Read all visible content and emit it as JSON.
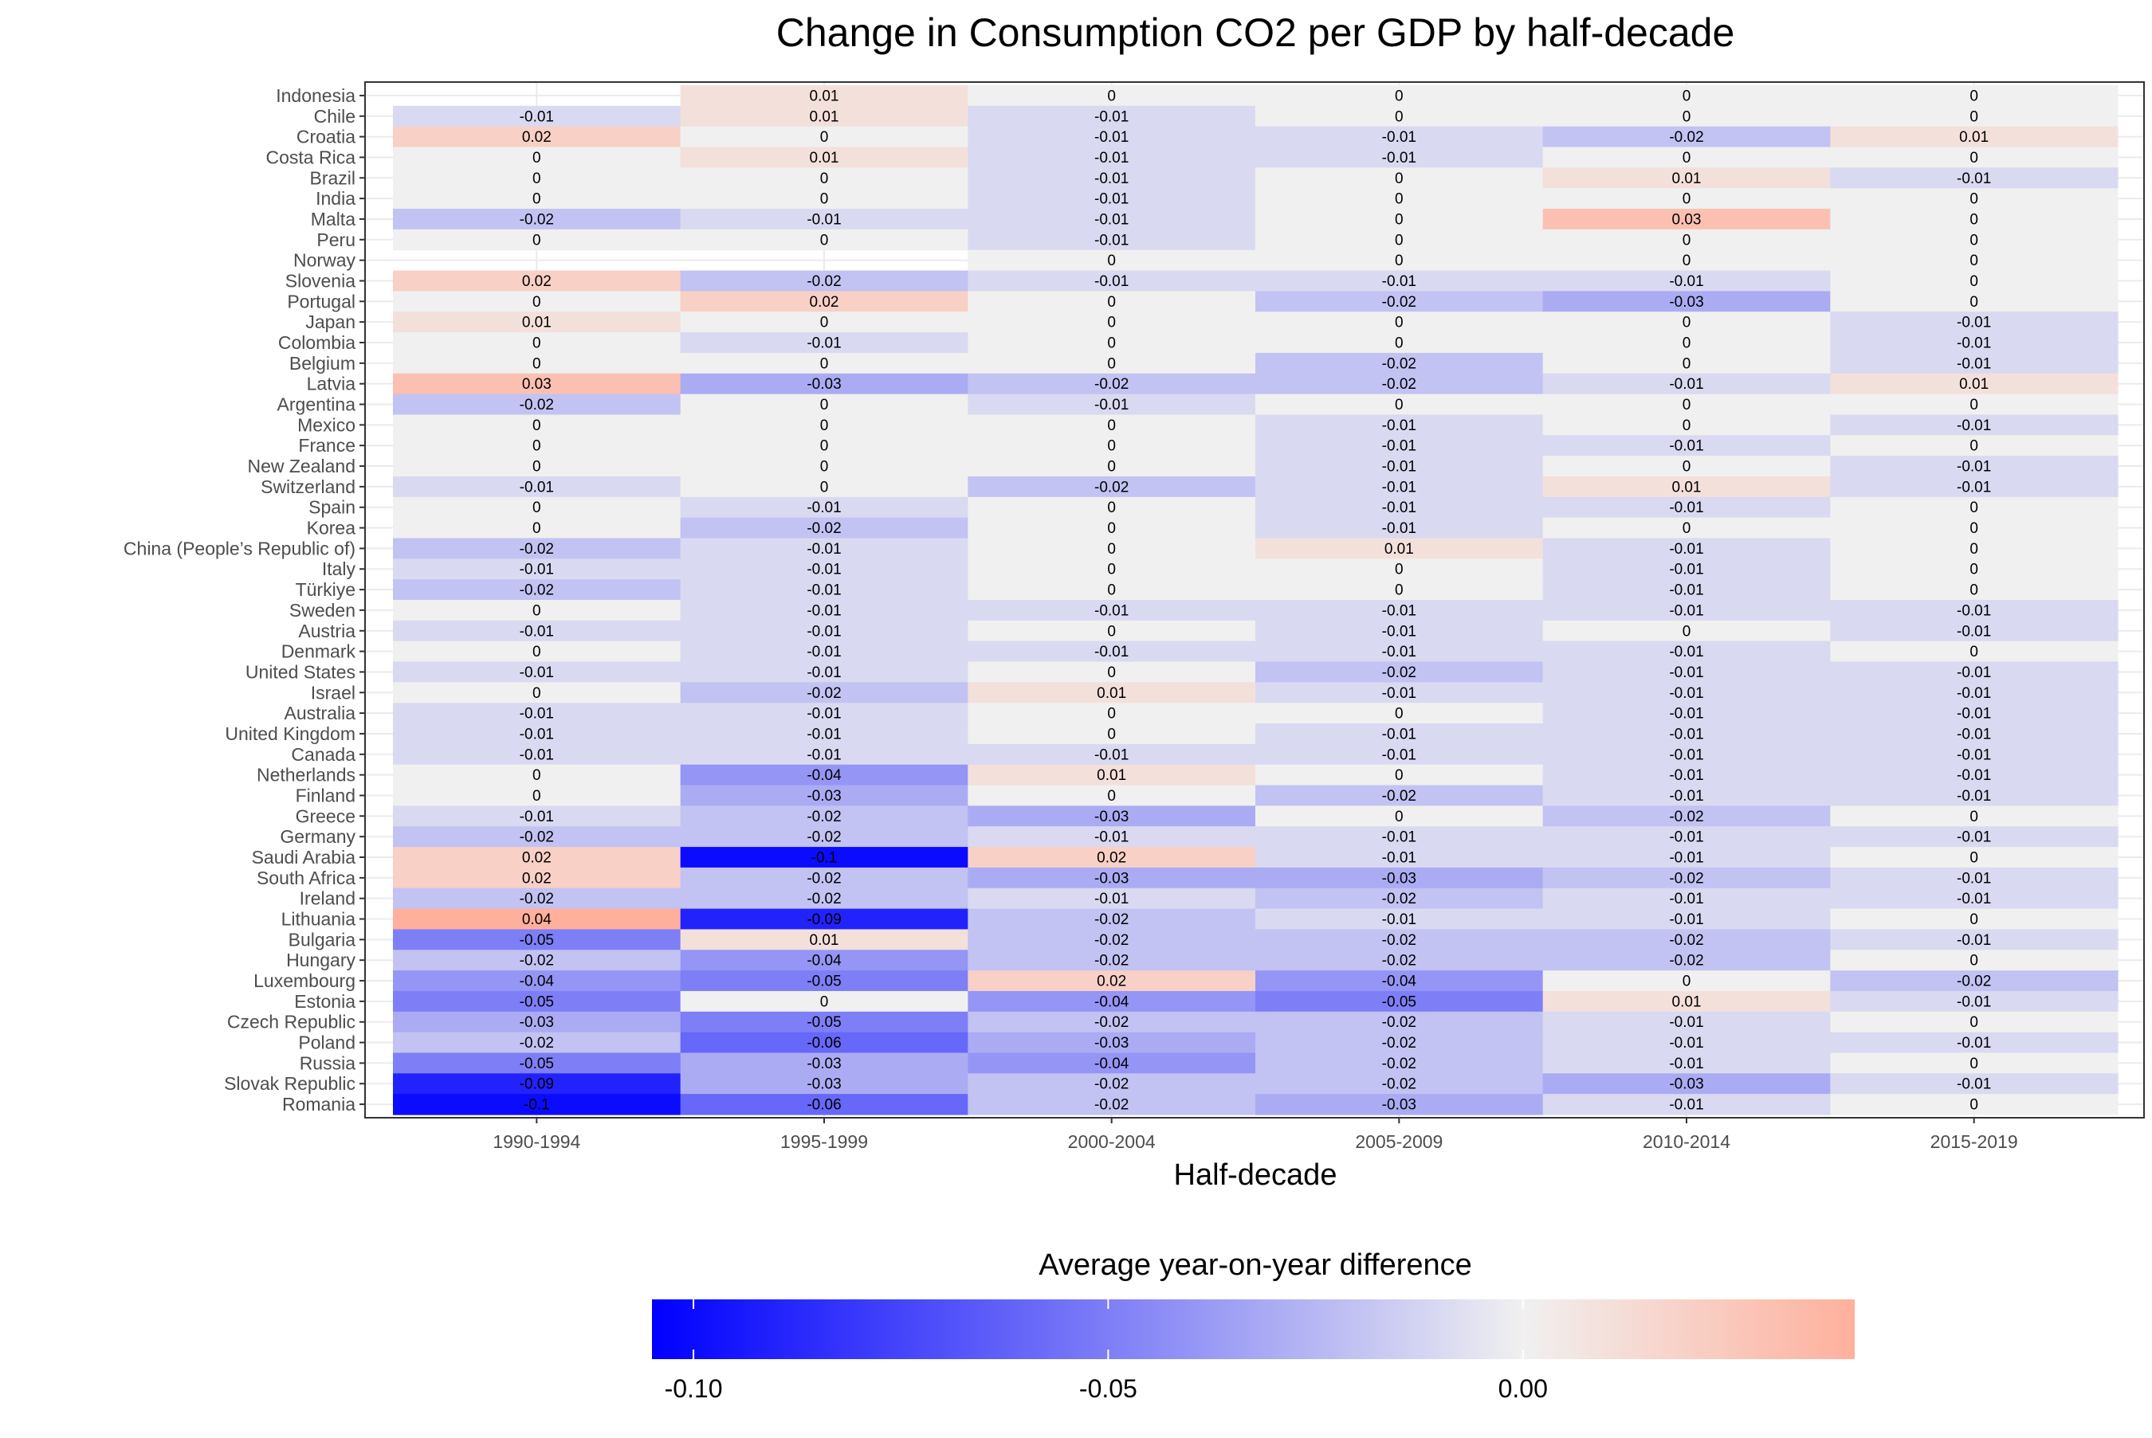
{
  "chart_data": {
    "type": "heatmap",
    "title": "Change in Consumption CO2 per GDP by half-decade",
    "xlabel": "Half-decade",
    "ylabel": "",
    "x": [
      "1990-1994",
      "1995-1999",
      "2000-2004",
      "2005-2009",
      "2010-2014",
      "2015-2019"
    ],
    "y": [
      "Indonesia",
      "Chile",
      "Croatia",
      "Costa Rica",
      "Brazil",
      "India",
      "Malta",
      "Peru",
      "Norway",
      "Slovenia",
      "Portugal",
      "Japan",
      "Colombia",
      "Belgium",
      "Latvia",
      "Argentina",
      "Mexico",
      "France",
      "New Zealand",
      "Switzerland",
      "Spain",
      "Korea",
      "China (People’s Republic of)",
      "Italy",
      "Türkiye",
      "Sweden",
      "Austria",
      "Denmark",
      "United States",
      "Israel",
      "Australia",
      "United Kingdom",
      "Canada",
      "Netherlands",
      "Finland",
      "Greece",
      "Germany",
      "Saudi Arabia",
      "South Africa",
      "Ireland",
      "Lithuania",
      "Bulgaria",
      "Hungary",
      "Luxembourg",
      "Estonia",
      "Czech Republic",
      "Poland",
      "Russia",
      "Slovak Republic",
      "Romania"
    ],
    "values": [
      [
        null,
        0.01,
        0,
        0,
        0,
        0
      ],
      [
        -0.01,
        0.01,
        -0.01,
        0,
        0,
        0
      ],
      [
        0.02,
        0,
        -0.01,
        -0.01,
        -0.02,
        0.01
      ],
      [
        0,
        0.01,
        -0.01,
        -0.01,
        0,
        0
      ],
      [
        0,
        0,
        -0.01,
        0,
        0.01,
        -0.01
      ],
      [
        0,
        0,
        -0.01,
        0,
        0,
        0
      ],
      [
        -0.02,
        -0.01,
        -0.01,
        0,
        0.03,
        0
      ],
      [
        0,
        0,
        -0.01,
        0,
        0,
        0
      ],
      [
        null,
        null,
        0,
        0,
        0,
        0
      ],
      [
        0.02,
        -0.02,
        -0.01,
        -0.01,
        -0.01,
        0
      ],
      [
        0,
        0.02,
        0,
        -0.02,
        -0.03,
        0
      ],
      [
        0.01,
        0,
        0,
        0,
        0,
        -0.01
      ],
      [
        0,
        -0.01,
        0,
        0,
        0,
        -0.01
      ],
      [
        0,
        0,
        0,
        -0.02,
        0,
        -0.01
      ],
      [
        0.03,
        -0.03,
        -0.02,
        -0.02,
        -0.01,
        0.01
      ],
      [
        -0.02,
        0,
        -0.01,
        0,
        0,
        0
      ],
      [
        0,
        0,
        0,
        -0.01,
        0,
        -0.01
      ],
      [
        0,
        0,
        0,
        -0.01,
        -0.01,
        0
      ],
      [
        0,
        0,
        0,
        -0.01,
        0,
        -0.01
      ],
      [
        -0.01,
        0,
        -0.02,
        -0.01,
        0.01,
        -0.01
      ],
      [
        0,
        -0.01,
        0,
        -0.01,
        -0.01,
        0
      ],
      [
        0,
        -0.02,
        0,
        -0.01,
        0,
        0
      ],
      [
        -0.02,
        -0.01,
        0,
        0.01,
        -0.01,
        0
      ],
      [
        -0.01,
        -0.01,
        0,
        0,
        -0.01,
        0
      ],
      [
        -0.02,
        -0.01,
        0,
        0,
        -0.01,
        0
      ],
      [
        0,
        -0.01,
        -0.01,
        -0.01,
        -0.01,
        -0.01
      ],
      [
        -0.01,
        -0.01,
        0,
        -0.01,
        0,
        -0.01
      ],
      [
        0,
        -0.01,
        -0.01,
        -0.01,
        -0.01,
        0
      ],
      [
        -0.01,
        -0.01,
        0,
        -0.02,
        -0.01,
        -0.01
      ],
      [
        0,
        -0.02,
        0.01,
        -0.01,
        -0.01,
        -0.01
      ],
      [
        -0.01,
        -0.01,
        0,
        0,
        -0.01,
        -0.01
      ],
      [
        -0.01,
        -0.01,
        0,
        -0.01,
        -0.01,
        -0.01
      ],
      [
        -0.01,
        -0.01,
        -0.01,
        -0.01,
        -0.01,
        -0.01
      ],
      [
        0,
        -0.04,
        0.01,
        0,
        -0.01,
        -0.01
      ],
      [
        0,
        -0.03,
        0,
        -0.02,
        -0.01,
        -0.01
      ],
      [
        -0.01,
        -0.02,
        -0.03,
        0,
        -0.02,
        0
      ],
      [
        -0.02,
        -0.02,
        -0.01,
        -0.01,
        -0.01,
        -0.01
      ],
      [
        0.02,
        -0.1,
        0.02,
        -0.01,
        -0.01,
        0
      ],
      [
        0.02,
        -0.02,
        -0.03,
        -0.03,
        -0.02,
        -0.01
      ],
      [
        -0.02,
        -0.02,
        -0.01,
        -0.02,
        -0.01,
        -0.01
      ],
      [
        0.04,
        -0.09,
        -0.02,
        -0.01,
        -0.01,
        0
      ],
      [
        -0.05,
        0.01,
        -0.02,
        -0.02,
        -0.02,
        -0.01
      ],
      [
        -0.02,
        -0.04,
        -0.02,
        -0.02,
        -0.02,
        0
      ],
      [
        -0.04,
        -0.05,
        0.02,
        -0.04,
        0,
        -0.02
      ],
      [
        -0.05,
        0,
        -0.04,
        -0.05,
        0.01,
        -0.01
      ],
      [
        -0.03,
        -0.05,
        -0.02,
        -0.02,
        -0.01,
        0
      ],
      [
        -0.02,
        -0.06,
        -0.03,
        -0.02,
        -0.01,
        -0.01
      ],
      [
        -0.05,
        -0.03,
        -0.04,
        -0.02,
        -0.01,
        0
      ],
      [
        -0.09,
        -0.03,
        -0.02,
        -0.02,
        -0.03,
        -0.01
      ],
      [
        -0.1,
        -0.06,
        -0.02,
        -0.03,
        -0.01,
        0
      ]
    ],
    "colorbar": {
      "title": "Average year-on-year difference",
      "min": -0.105,
      "max": 0.04,
      "ticks": [
        -0.1,
        -0.05,
        0
      ],
      "tick_labels": [
        "-0.10",
        "-0.05",
        "0.00"
      ],
      "low_color": "#0000ff",
      "mid_color": "#f0f0f0",
      "high_color": "#ffb09c",
      "na_color": "#ffffff"
    },
    "grid": true,
    "legend_position": "bottom"
  }
}
